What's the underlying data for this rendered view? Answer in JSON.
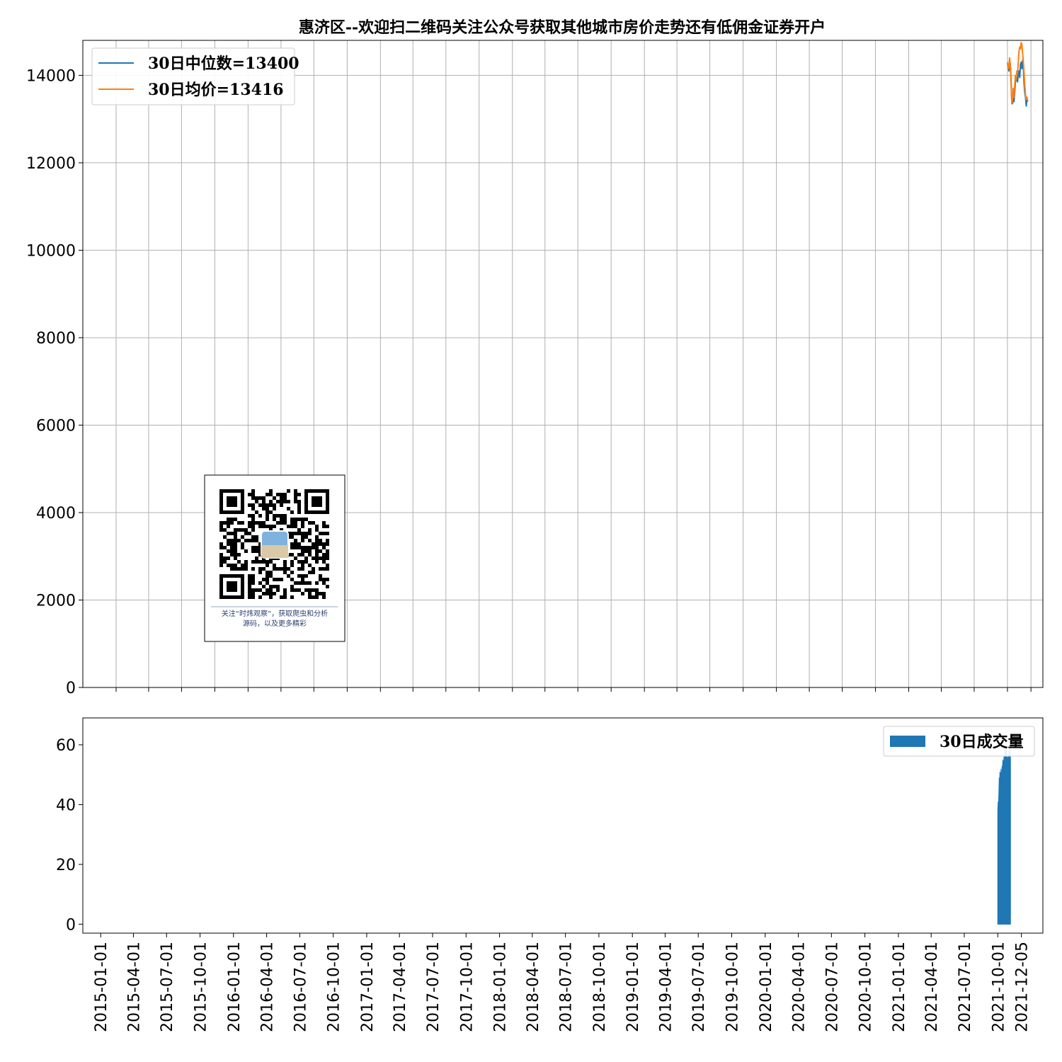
{
  "chart_data": [
    {
      "type": "line",
      "title": "惠济区--欢迎扫二维码关注公众号获取其他城市房价走势还有低佣金证券开户",
      "xlabel": "",
      "ylabel": "",
      "ylim": [
        0,
        14800
      ],
      "yticks": [
        0,
        2000,
        4000,
        6000,
        8000,
        10000,
        12000,
        14000
      ],
      "grid": true,
      "legend_position": "top-left",
      "series": [
        {
          "name": "30日中位数=13400",
          "color": "#1f77b4",
          "points": [
            [
              "2021-10-01",
              14250
            ],
            [
              "2021-10-03",
              14200
            ],
            [
              "2021-10-05",
              14100
            ],
            [
              "2021-10-07",
              14350
            ],
            [
              "2021-10-09",
              14250
            ],
            [
              "2021-10-11",
              13900
            ],
            [
              "2021-10-13",
              13400
            ],
            [
              "2021-10-15",
              13350
            ],
            [
              "2021-10-17",
              13500
            ],
            [
              "2021-10-19",
              13400
            ],
            [
              "2021-10-21",
              13600
            ],
            [
              "2021-10-23",
              13850
            ],
            [
              "2021-10-25",
              13900
            ],
            [
              "2021-10-27",
              13950
            ],
            [
              "2021-10-29",
              13850
            ],
            [
              "2021-10-31",
              14050
            ],
            [
              "2021-11-02",
              14100
            ],
            [
              "2021-11-04",
              13950
            ],
            [
              "2021-11-06",
              14250
            ],
            [
              "2021-11-08",
              14300
            ],
            [
              "2021-11-10",
              14150
            ],
            [
              "2021-11-12",
              14350
            ],
            [
              "2021-11-14",
              14200
            ],
            [
              "2021-11-16",
              13800
            ],
            [
              "2021-11-18",
              13600
            ],
            [
              "2021-11-20",
              13500
            ],
            [
              "2021-11-22",
              13300
            ],
            [
              "2021-11-24",
              13450
            ],
            [
              "2021-11-26",
              13400
            ]
          ]
        },
        {
          "name": "30日均价=13416",
          "color": "#ff7f0e",
          "points": [
            [
              "2021-10-01",
              14300
            ],
            [
              "2021-10-03",
              14150
            ],
            [
              "2021-10-05",
              14200
            ],
            [
              "2021-10-07",
              14400
            ],
            [
              "2021-10-09",
              14200
            ],
            [
              "2021-10-11",
              13800
            ],
            [
              "2021-10-13",
              13350
            ],
            [
              "2021-10-15",
              13450
            ],
            [
              "2021-10-17",
              13700
            ],
            [
              "2021-10-19",
              13500
            ],
            [
              "2021-10-21",
              13750
            ],
            [
              "2021-10-23",
              14000
            ],
            [
              "2021-10-25",
              13900
            ],
            [
              "2021-10-27",
              14100
            ],
            [
              "2021-10-29",
              14050
            ],
            [
              "2021-10-31",
              14300
            ],
            [
              "2021-11-02",
              14550
            ],
            [
              "2021-11-04",
              14650
            ],
            [
              "2021-11-06",
              14600
            ],
            [
              "2021-11-08",
              14750
            ],
            [
              "2021-11-10",
              14700
            ],
            [
              "2021-11-12",
              14500
            ],
            [
              "2021-11-14",
              14300
            ],
            [
              "2021-11-16",
              14050
            ],
            [
              "2021-11-18",
              13750
            ],
            [
              "2021-11-20",
              13550
            ],
            [
              "2021-11-22",
              13450
            ],
            [
              "2021-11-24",
              13500
            ],
            [
              "2021-11-26",
              13416
            ]
          ]
        }
      ]
    },
    {
      "type": "area",
      "title": "",
      "xlabel": "",
      "ylabel": "",
      "ylim": [
        -3,
        69
      ],
      "yticks": [
        0,
        20,
        40,
        60
      ],
      "grid": false,
      "legend_position": "top-right",
      "categories": [
        "2015-01-01",
        "2015-04-01",
        "2015-07-01",
        "2015-10-01",
        "2016-01-01",
        "2016-04-01",
        "2016-07-01",
        "2016-10-01",
        "2017-01-01",
        "2017-04-01",
        "2017-07-01",
        "2017-10-01",
        "2018-01-01",
        "2018-04-01",
        "2018-07-01",
        "2018-10-01",
        "2019-01-01",
        "2019-04-01",
        "2019-07-01",
        "2019-10-01",
        "2020-01-01",
        "2020-04-01",
        "2020-07-01",
        "2020-10-01",
        "2021-01-01",
        "2021-04-01",
        "2021-07-01",
        "2021-10-01",
        "2021-12-05"
      ],
      "series": [
        {
          "name": "30日成交量",
          "color": "#1f77b4",
          "points": [
            [
              "2021-10-01",
              38
            ],
            [
              "2021-10-02",
              41
            ],
            [
              "2021-10-03",
              40
            ],
            [
              "2021-10-04",
              44
            ],
            [
              "2021-10-05",
              49
            ],
            [
              "2021-10-06",
              48
            ],
            [
              "2021-10-07",
              51
            ],
            [
              "2021-10-08",
              50
            ],
            [
              "2021-10-09",
              49
            ],
            [
              "2021-10-10",
              52
            ],
            [
              "2021-10-11",
              50
            ],
            [
              "2021-10-12",
              49
            ],
            [
              "2021-10-13",
              53
            ],
            [
              "2021-10-14",
              52
            ],
            [
              "2021-10-15",
              55
            ],
            [
              "2021-10-16",
              54
            ],
            [
              "2021-10-17",
              53
            ],
            [
              "2021-10-18",
              56
            ],
            [
              "2021-10-19",
              55
            ],
            [
              "2021-10-20",
              57
            ],
            [
              "2021-10-21",
              58
            ],
            [
              "2021-10-22",
              60
            ],
            [
              "2021-10-23",
              59
            ],
            [
              "2021-10-24",
              61
            ],
            [
              "2021-10-25",
              58
            ],
            [
              "2021-10-26",
              55
            ],
            [
              "2021-10-27",
              53
            ],
            [
              "2021-10-28",
              56
            ],
            [
              "2021-10-29",
              54
            ],
            [
              "2021-10-30",
              57
            ],
            [
              "2021-10-31",
              55
            ],
            [
              "2021-11-01",
              58
            ],
            [
              "2021-11-02",
              57
            ],
            [
              "2021-11-03",
              59
            ],
            [
              "2021-11-04",
              58
            ],
            [
              "2021-11-05",
              60
            ]
          ]
        }
      ]
    }
  ],
  "qr_caption": [
    "关注“时炜观察”，获取爬虫和分析",
    "源码，以及更多精彩"
  ]
}
